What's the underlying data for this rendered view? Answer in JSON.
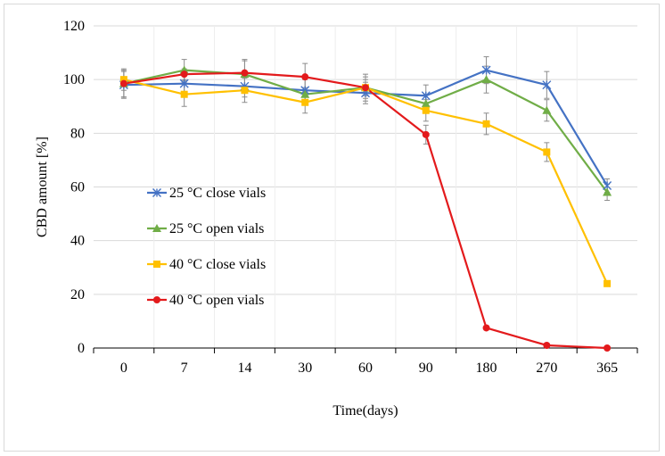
{
  "chart_data": {
    "type": "line",
    "title": "",
    "xlabel": "Time(days)",
    "ylabel": "CBD amount [%]",
    "categories": [
      "0",
      "7",
      "14",
      "30",
      "60",
      "90",
      "180",
      "270",
      "365"
    ],
    "ylim": [
      0,
      120
    ],
    "yticks": [
      0,
      20,
      40,
      60,
      80,
      100,
      120
    ],
    "grid": true,
    "legend_position": "left-middle",
    "series": [
      {
        "name": "25 °C close vials",
        "color": "#4472c4",
        "marker": "star",
        "values": [
          98,
          98.5,
          97.5,
          96,
          95,
          94,
          103.5,
          98,
          60.5
        ],
        "errors": [
          5,
          4,
          4,
          4,
          4,
          4,
          5,
          5,
          2.5
        ]
      },
      {
        "name": "25 °C open vials",
        "color": "#70ad47",
        "marker": "triangle",
        "values": [
          98.5,
          103.5,
          102,
          94.5,
          97,
          91,
          100,
          88.5,
          58
        ],
        "errors": [
          5,
          4,
          5,
          2.5,
          4,
          3.5,
          5,
          4,
          3
        ]
      },
      {
        "name": "40 °C close vials",
        "color": "#ffc000",
        "marker": "square",
        "values": [
          100,
          94.5,
          96,
          91.5,
          97,
          88.5,
          83.5,
          73,
          24
        ],
        "errors": [
          4,
          4.5,
          4.5,
          4,
          3,
          4,
          4,
          3.5,
          1
        ]
      },
      {
        "name": "40 °C open vials",
        "color": "#e31a1c",
        "marker": "circle",
        "values": [
          98.5,
          102,
          102.5,
          101,
          97,
          79.5,
          7.5,
          1,
          0
        ],
        "errors": [
          5,
          2,
          5,
          5,
          5,
          3.5,
          0.5,
          0.5,
          0
        ]
      }
    ]
  }
}
